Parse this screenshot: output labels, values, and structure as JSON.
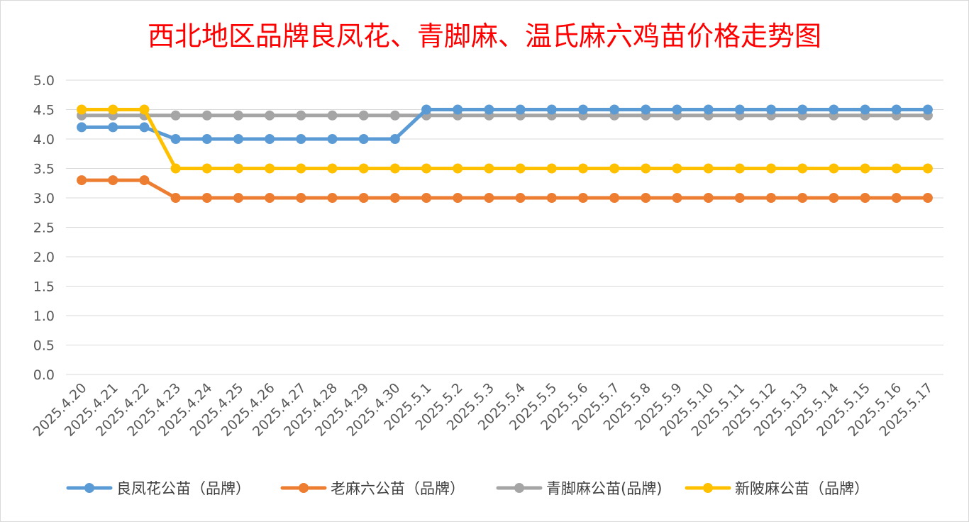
{
  "chart_data": {
    "type": "line",
    "title": "西北地区品牌良凤花、青脚麻、温氏麻六鸡苗价格走势图",
    "xlabel": "",
    "ylabel": "",
    "ylim": [
      0,
      5
    ],
    "ytick_labels": [
      "0.0",
      "0.5",
      "1.0",
      "1.5",
      "2.0",
      "2.5",
      "3.0",
      "3.5",
      "4.0",
      "4.5",
      "5.0"
    ],
    "grid": true,
    "legend_position": "bottom",
    "categories": [
      "2025.4.20",
      "2025.4.21",
      "2025.4.22",
      "2025.4.23",
      "2025.4.24",
      "2025.4.25",
      "2025.4.26",
      "2025.4.27",
      "2025.4.28",
      "2025.4.29",
      "2025.4.30",
      "2025.5.1",
      "2025.5.2",
      "2025.5.3",
      "2025.5.4",
      "2025.5.5",
      "2025.5.6",
      "2025.5.7",
      "2025.5.8",
      "2025.5.9",
      "2025.5.10",
      "2025.5.11",
      "2025.5.12",
      "2025.5.13",
      "2025.5.14",
      "2025.5.15",
      "2025.5.16",
      "2025.5.17"
    ],
    "series": [
      {
        "name": "良凤花公苗（品牌）",
        "color": "#5b9bd5",
        "values": [
          4.2,
          4.2,
          4.2,
          4.0,
          4.0,
          4.0,
          4.0,
          4.0,
          4.0,
          4.0,
          4.0,
          4.5,
          4.5,
          4.5,
          4.5,
          4.5,
          4.5,
          4.5,
          4.5,
          4.5,
          4.5,
          4.5,
          4.5,
          4.5,
          4.5,
          4.5,
          4.5,
          4.5
        ]
      },
      {
        "name": "老麻六公苗（品牌）",
        "color": "#ed7d31",
        "values": [
          3.3,
          3.3,
          3.3,
          3.0,
          3.0,
          3.0,
          3.0,
          3.0,
          3.0,
          3.0,
          3.0,
          3.0,
          3.0,
          3.0,
          3.0,
          3.0,
          3.0,
          3.0,
          3.0,
          3.0,
          3.0,
          3.0,
          3.0,
          3.0,
          3.0,
          3.0,
          3.0,
          3.0
        ]
      },
      {
        "name": "青脚麻公苗(品牌)",
        "color": "#a5a5a5",
        "values": [
          4.4,
          4.4,
          4.4,
          4.4,
          4.4,
          4.4,
          4.4,
          4.4,
          4.4,
          4.4,
          4.4,
          4.4,
          4.4,
          4.4,
          4.4,
          4.4,
          4.4,
          4.4,
          4.4,
          4.4,
          4.4,
          4.4,
          4.4,
          4.4,
          4.4,
          4.4,
          4.4,
          4.4
        ]
      },
      {
        "name": "新陂麻公苗（品牌）",
        "color": "#ffc000",
        "values": [
          4.5,
          4.5,
          4.5,
          3.5,
          3.5,
          3.5,
          3.5,
          3.5,
          3.5,
          3.5,
          3.5,
          3.5,
          3.5,
          3.5,
          3.5,
          3.5,
          3.5,
          3.5,
          3.5,
          3.5,
          3.5,
          3.5,
          3.5,
          3.5,
          3.5,
          3.5,
          3.5,
          3.5
        ]
      }
    ]
  }
}
